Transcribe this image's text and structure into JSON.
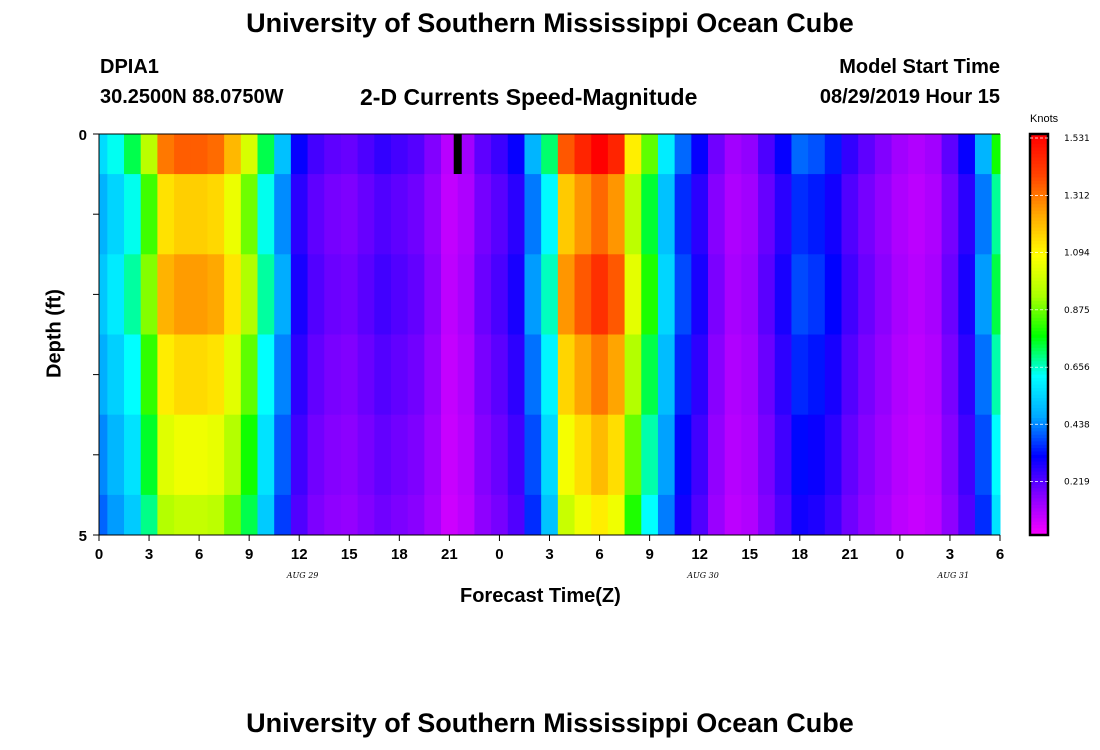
{
  "header": {
    "title_top": "University of Southern Mississippi Ocean Cube",
    "title_bottom": "University of Southern Mississippi Ocean Cube",
    "station": "DPIA1",
    "coords": "30.2500N 88.0750W",
    "subtitle": "2-D Currents Speed-Magnitude",
    "model_start_label": "Model Start Time",
    "model_start_value": "08/29/2019 Hour 15"
  },
  "chart_data": {
    "type": "heatmap",
    "title": "2-D Currents Speed-Magnitude",
    "xlabel": "Forecast Time(Z)",
    "ylabel": "Depth (ft)",
    "colorbar_label": "Knots",
    "x_hours": [
      0,
      1,
      2,
      3,
      4,
      5,
      6,
      7,
      8,
      9,
      10,
      11,
      12,
      13,
      14,
      15,
      16,
      17,
      18,
      19,
      20,
      21,
      22,
      23,
      24,
      25,
      26,
      27,
      28,
      29,
      30,
      31,
      32,
      33,
      34,
      35,
      36,
      37,
      38,
      39,
      40,
      41,
      42,
      43,
      44,
      45,
      46,
      47,
      48,
      49,
      50,
      51,
      52,
      53,
      54
    ],
    "x_tick_labels": [
      "0",
      "3",
      "6",
      "9",
      "12",
      "15",
      "18",
      "21",
      "0",
      "3",
      "6",
      "9",
      "12",
      "15",
      "18",
      "21",
      "0",
      "3",
      "6"
    ],
    "x_tick_hours": [
      0,
      3,
      6,
      9,
      12,
      15,
      18,
      21,
      24,
      27,
      30,
      33,
      36,
      39,
      42,
      45,
      48,
      51,
      54
    ],
    "day_labels": [
      {
        "text": "AUG 29",
        "hour": 12.5
      },
      {
        "text": "AUG 30",
        "hour": 36.5
      },
      {
        "text": "AUG 31",
        "hour": 51.5
      }
    ],
    "y_tick_labels": [
      "0",
      "5"
    ],
    "depth_range_ft": [
      0,
      5
    ],
    "depth_layers": 5,
    "current_time_marker_hour": 21.5,
    "colorbar_ticks": [
      "1.531",
      "1.312",
      "1.094",
      "0.875",
      "0.656",
      "0.438",
      "0.219"
    ],
    "colorbar_range": [
      0,
      1.531
    ],
    "surface_speed_knots": [
      0.55,
      0.62,
      0.72,
      0.95,
      1.3,
      1.34,
      1.34,
      1.32,
      1.2,
      1.0,
      0.72,
      0.5,
      0.3,
      0.23,
      0.2,
      0.19,
      0.22,
      0.25,
      0.23,
      0.21,
      0.16,
      0.09,
      0.12,
      0.2,
      0.24,
      0.3,
      0.48,
      0.7,
      1.35,
      1.45,
      1.53,
      1.45,
      1.1,
      0.85,
      0.58,
      0.4,
      0.3,
      0.18,
      0.12,
      0.14,
      0.22,
      0.3,
      0.4,
      0.38,
      0.33,
      0.25,
      0.2,
      0.16,
      0.12,
      0.1,
      0.12,
      0.2,
      0.3,
      0.48,
      0.78
    ],
    "layer_scale": [
      1.0,
      0.93,
      0.85,
      0.78,
      0.72
    ]
  },
  "colors": {
    "marker": "#000000",
    "colormap": [
      "#ff00ff",
      "#8800ff",
      "#0000ff",
      "#00aaff",
      "#00ffff",
      "#00ff00",
      "#aaff00",
      "#ffff00",
      "#ffaa00",
      "#ff4400",
      "#ff0000"
    ]
  }
}
